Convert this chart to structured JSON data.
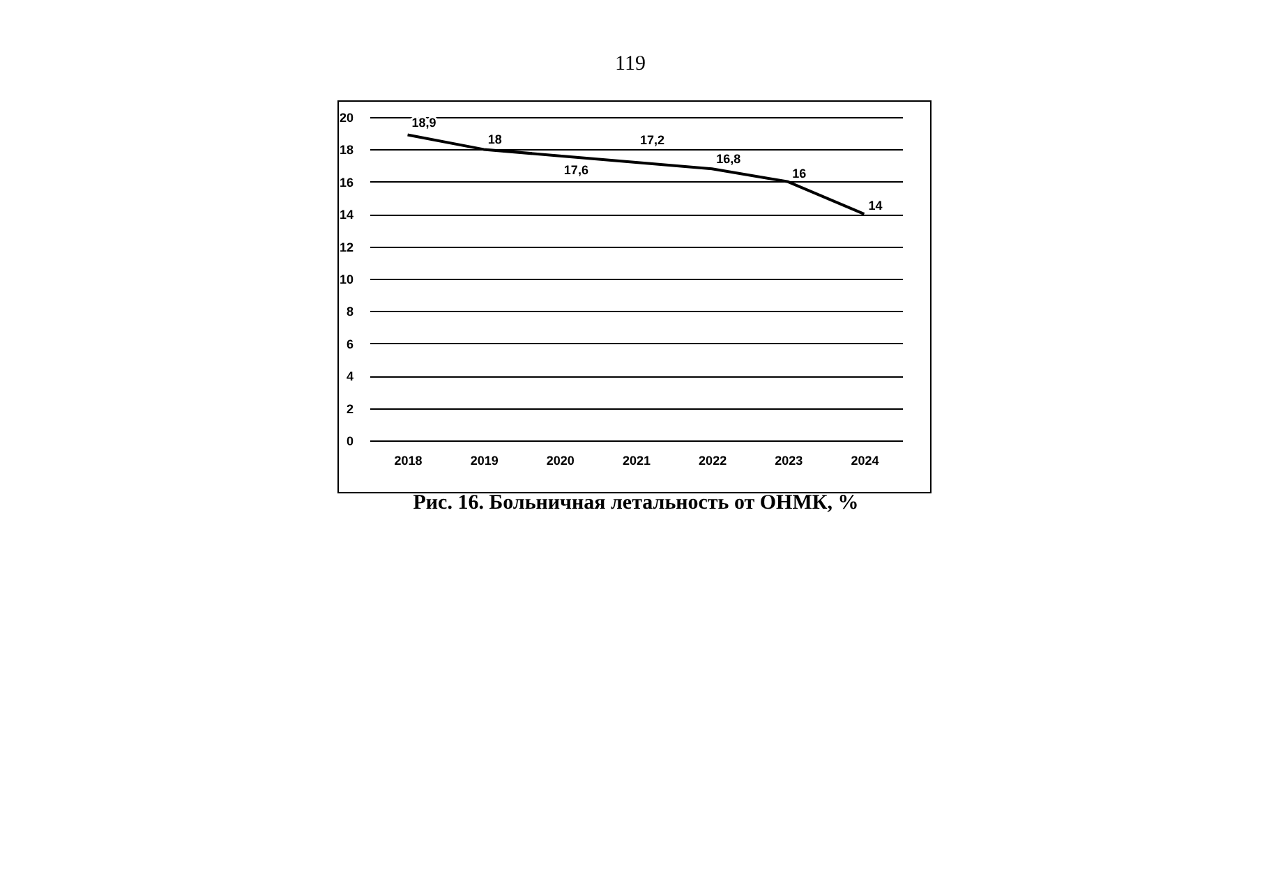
{
  "chart_data": {
    "type": "line",
    "title": "Рис. 16. Больничная летальность от ОНМК, %",
    "annotations": [
      "119"
    ],
    "categories": [
      "2018",
      "2019",
      "2020",
      "2021",
      "2022",
      "2023",
      "2024"
    ],
    "series": [
      {
        "color": "#000000",
        "values": [
          18.9,
          18,
          17.6,
          17.2,
          16.8,
          16,
          14
        ],
        "value_labels": [
          "18,9",
          "18",
          "17,6",
          "17,2",
          "16,8",
          "16",
          "14"
        ]
      }
    ],
    "ylim": [
      0,
      20
    ],
    "yticks": [
      0,
      2,
      4,
      6,
      8,
      10,
      12,
      14,
      16,
      18,
      20
    ],
    "grid": "y",
    "legend": false,
    "marker": "none",
    "line_style": "solid"
  }
}
